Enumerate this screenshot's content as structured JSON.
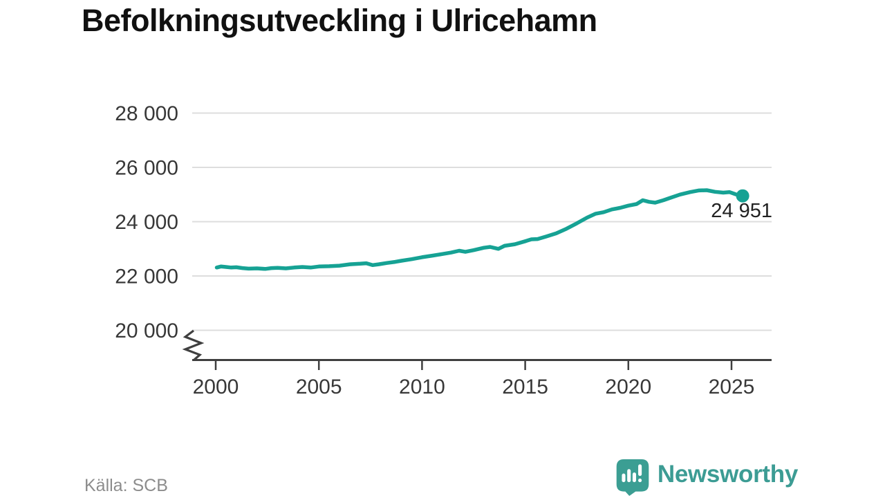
{
  "title": "Befolkningsutveckling i Ulricehamn",
  "footer": {
    "source": "Källa: SCB",
    "brand": "Newsworthy"
  },
  "colors": {
    "line": "#16a294",
    "end_dot": "#16a294",
    "logo_icon": "#3b9e93",
    "logo_text": "#3c9c94",
    "grid": "#dddddd",
    "axis": "#3f3f3f",
    "tick_label": "#383838",
    "title": "#111111",
    "source": "#8c8c8c",
    "end_label": "#222222"
  },
  "chart_data": {
    "type": "line",
    "title": "Befolkningsutveckling i Ulricehamn",
    "xlabel": "",
    "ylabel": "",
    "grid": "horizontal",
    "legend": "none",
    "axis_break_at_bottom": true,
    "ylim_display": [
      20000,
      28000
    ],
    "xlim": [
      1998.9,
      2026.9
    ],
    "x_ticks": [
      2000,
      2005,
      2010,
      2015,
      2020,
      2025
    ],
    "y_ticks": [
      {
        "value": 20000,
        "label": "20 000"
      },
      {
        "value": 22000,
        "label": "22 000"
      },
      {
        "value": 24000,
        "label": "24 000"
      },
      {
        "value": 26000,
        "label": "26 000"
      },
      {
        "value": 28000,
        "label": "28 000"
      }
    ],
    "end_label": "24 951",
    "end_value": 24951,
    "series": [
      {
        "name": "Befolkning i Ulricehamn",
        "points": [
          [
            2000.05,
            22310
          ],
          [
            2000.25,
            22350
          ],
          [
            2000.5,
            22330
          ],
          [
            2000.75,
            22310
          ],
          [
            2001.0,
            22320
          ],
          [
            2001.3,
            22290
          ],
          [
            2001.6,
            22270
          ],
          [
            2002.0,
            22280
          ],
          [
            2002.4,
            22260
          ],
          [
            2002.7,
            22290
          ],
          [
            2003.0,
            22300
          ],
          [
            2003.4,
            22280
          ],
          [
            2003.8,
            22310
          ],
          [
            2004.2,
            22330
          ],
          [
            2004.6,
            22310
          ],
          [
            2005.0,
            22350
          ],
          [
            2005.5,
            22360
          ],
          [
            2006.0,
            22380
          ],
          [
            2006.5,
            22430
          ],
          [
            2007.0,
            22450
          ],
          [
            2007.3,
            22470
          ],
          [
            2007.6,
            22400
          ],
          [
            2007.9,
            22430
          ],
          [
            2008.3,
            22480
          ],
          [
            2008.7,
            22520
          ],
          [
            2009.0,
            22560
          ],
          [
            2009.5,
            22620
          ],
          [
            2010.0,
            22690
          ],
          [
            2010.5,
            22750
          ],
          [
            2011.0,
            22810
          ],
          [
            2011.4,
            22860
          ],
          [
            2011.8,
            22930
          ],
          [
            2012.1,
            22890
          ],
          [
            2012.5,
            22950
          ],
          [
            2013.0,
            23040
          ],
          [
            2013.3,
            23070
          ],
          [
            2013.7,
            23000
          ],
          [
            2014.0,
            23110
          ],
          [
            2014.5,
            23170
          ],
          [
            2015.0,
            23280
          ],
          [
            2015.3,
            23350
          ],
          [
            2015.6,
            23360
          ],
          [
            2016.0,
            23450
          ],
          [
            2016.5,
            23570
          ],
          [
            2017.0,
            23740
          ],
          [
            2017.5,
            23940
          ],
          [
            2018.0,
            24150
          ],
          [
            2018.4,
            24290
          ],
          [
            2018.8,
            24350
          ],
          [
            2019.2,
            24450
          ],
          [
            2019.6,
            24510
          ],
          [
            2020.0,
            24590
          ],
          [
            2020.4,
            24650
          ],
          [
            2020.7,
            24790
          ],
          [
            2021.0,
            24730
          ],
          [
            2021.3,
            24700
          ],
          [
            2021.7,
            24790
          ],
          [
            2022.0,
            24870
          ],
          [
            2022.5,
            25000
          ],
          [
            2023.0,
            25090
          ],
          [
            2023.4,
            25150
          ],
          [
            2023.8,
            25160
          ],
          [
            2024.2,
            25100
          ],
          [
            2024.6,
            25070
          ],
          [
            2024.9,
            25090
          ],
          [
            2025.2,
            25010
          ],
          [
            2025.54,
            24951
          ]
        ]
      }
    ]
  }
}
